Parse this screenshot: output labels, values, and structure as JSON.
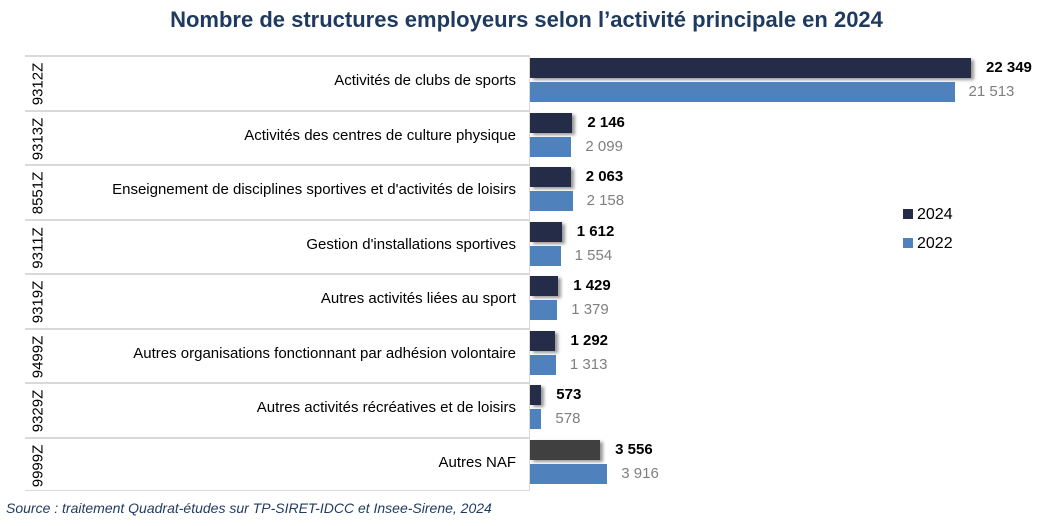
{
  "chart_data": {
    "type": "bar",
    "orientation": "horizontal",
    "title": "Nombre de structures employeurs selon l’activité principale en 2024",
    "codes": [
      "9312Z",
      "9313Z",
      "8551Z",
      "9311Z",
      "9319Z",
      "9499Z",
      "9329Z",
      "9999Z"
    ],
    "categories": [
      "Activités de clubs de sports",
      "Activités des centres de culture physique",
      "Enseignement de disciplines sportives et d'activités de loisirs",
      "Gestion d'installations sportives",
      "Autres activités liées au sport",
      "Autres organisations fonctionnant par adhésion volontaire",
      "Autres activités récréatives et de loisirs",
      "Autres NAF"
    ],
    "series": [
      {
        "name": "2024",
        "color": "#252c48",
        "values": [
          22349,
          2146,
          2063,
          1612,
          1429,
          1292,
          573,
          3556
        ],
        "labels": [
          "22 349",
          "2 146",
          "2 063",
          "1 612",
          "1 429",
          "1 292",
          "573",
          "3 556"
        ]
      },
      {
        "name": "2022",
        "color": "#4f81bd",
        "values": [
          21513,
          2099,
          2158,
          1554,
          1379,
          1313,
          578,
          3916
        ],
        "labels": [
          "21 513",
          "2 099",
          "2 158",
          "1 554",
          "1 379",
          "1 313",
          "578",
          "3 916"
        ]
      }
    ],
    "highlight_color_last_2024": "#404040",
    "legend_position": "right",
    "xlim": [
      0,
      22349
    ]
  },
  "source": "Source : traitement Quadrat-études sur TP-SIRET-IDCC et Insee-Sirene, 2024"
}
